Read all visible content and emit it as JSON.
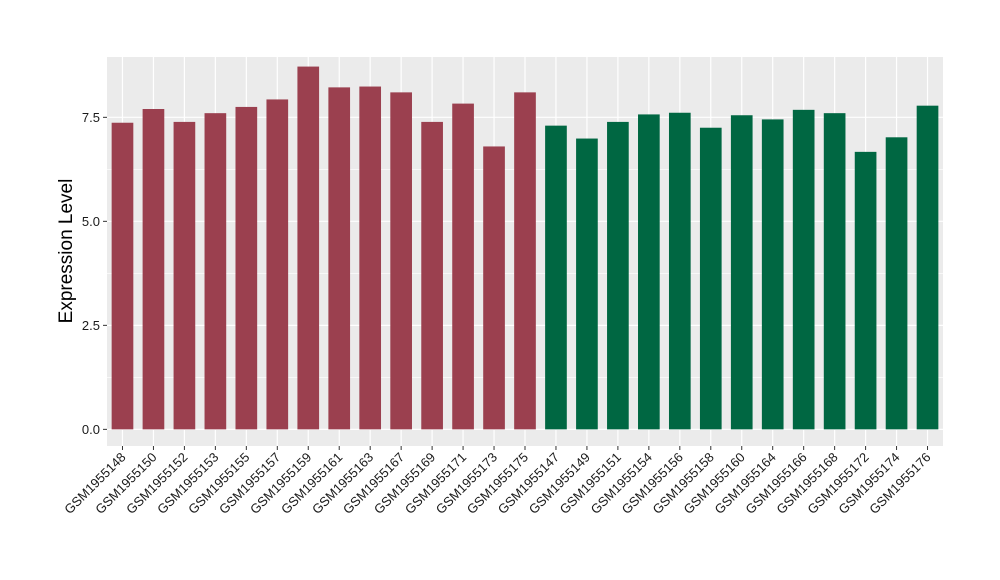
{
  "chart_data": {
    "type": "bar",
    "ylabel": "Expression Level",
    "xlabel": "",
    "title": "",
    "ylim": [
      -0.4,
      8.95
    ],
    "yticks": [
      0.0,
      2.5,
      5.0,
      7.5
    ],
    "ytick_labels": [
      "0.0",
      "2.5",
      "5.0",
      "7.5"
    ],
    "grid": true,
    "legend": "none",
    "colors": {
      "panel": "#EBEBEB",
      "grid": "#FFFFFF",
      "group_a": "#9B404F",
      "group_b": "#006742",
      "tick": "#333333"
    },
    "categories": [
      "GSM1955148",
      "GSM1955150",
      "GSM1955152",
      "GSM1955153",
      "GSM1955155",
      "GSM1955157",
      "GSM1955159",
      "GSM1955161",
      "GSM1955163",
      "GSM1955167",
      "GSM1955169",
      "GSM1955171",
      "GSM1955173",
      "GSM1955175",
      "GSM1955147",
      "GSM1955149",
      "GSM1955151",
      "GSM1955154",
      "GSM1955156",
      "GSM1955158",
      "GSM1955160",
      "GSM1955164",
      "GSM1955166",
      "GSM1955168",
      "GSM1955172",
      "GSM1955174",
      "GSM1955176"
    ],
    "values": [
      7.37,
      7.7,
      7.39,
      7.6,
      7.75,
      7.93,
      8.72,
      8.22,
      8.24,
      8.1,
      7.39,
      7.83,
      6.8,
      8.1,
      7.3,
      6.99,
      7.39,
      7.57,
      7.61,
      7.25,
      7.55,
      7.45,
      7.68,
      7.6,
      6.67,
      7.02,
      7.78
    ],
    "groups": [
      "a",
      "a",
      "a",
      "a",
      "a",
      "a",
      "a",
      "a",
      "a",
      "a",
      "a",
      "a",
      "a",
      "a",
      "b",
      "b",
      "b",
      "b",
      "b",
      "b",
      "b",
      "b",
      "b",
      "b",
      "b",
      "b",
      "b"
    ]
  }
}
